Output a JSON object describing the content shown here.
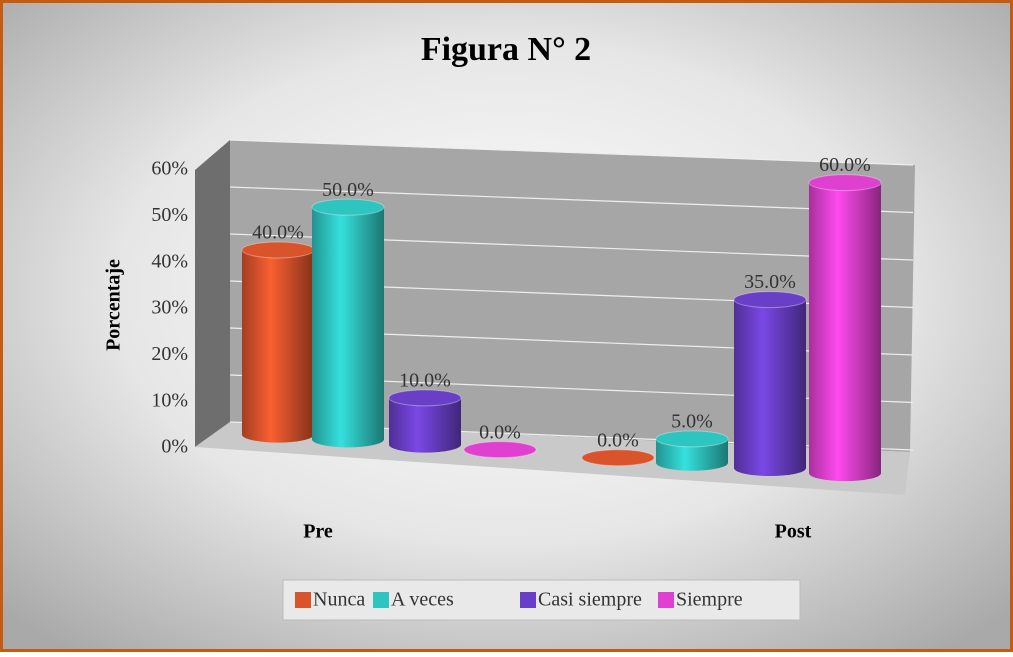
{
  "chart_data": {
    "type": "bar3d",
    "title": "Figura N° 2",
    "y_label": "Porcentaje",
    "categories": [
      "Pre",
      "Post"
    ],
    "series": [
      {
        "name": "Nunca",
        "color": "#d9532b",
        "values": [
          40,
          0
        ],
        "value_labels": [
          "40.0%",
          "0.0%"
        ]
      },
      {
        "name": "A veces",
        "color": "#2ec4c0",
        "values": [
          50,
          5
        ],
        "value_labels": [
          "50.0%",
          "5.0%"
        ]
      },
      {
        "name": "Casi siempre",
        "color": "#6a3fc8",
        "values": [
          10,
          35
        ],
        "value_labels": [
          "10.0%",
          "35.0%"
        ]
      },
      {
        "name": "Siempre",
        "color": "#e040d0",
        "values": [
          0,
          60
        ],
        "value_labels": [
          "0.0%",
          "60.0%"
        ]
      }
    ],
    "ylim": [
      0,
      60
    ],
    "yticks": [
      {
        "value": 0,
        "label": "0%"
      },
      {
        "value": 10,
        "label": "10%"
      },
      {
        "value": 20,
        "label": "20%"
      },
      {
        "value": 30,
        "label": "30%"
      },
      {
        "value": 40,
        "label": "40%"
      },
      {
        "value": 50,
        "label": "50%"
      },
      {
        "value": 60,
        "label": "60%"
      }
    ],
    "grid": true,
    "legend": "bottom"
  }
}
